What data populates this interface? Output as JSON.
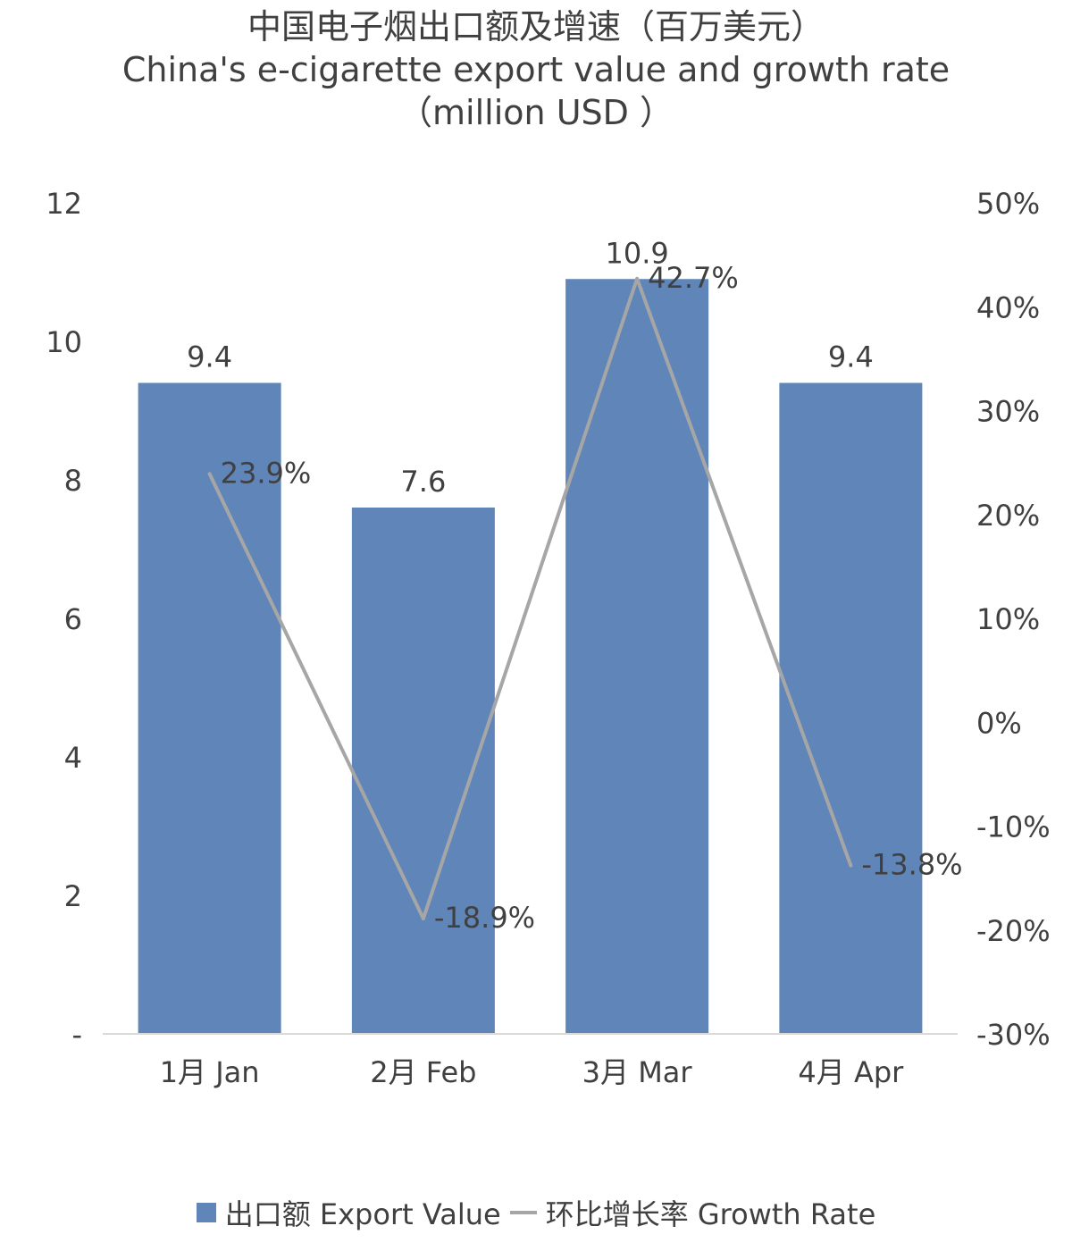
{
  "title_line1": "中国电子烟出口额及增速（百万美元）",
  "title_line2": "China's e-cigarette export value and growth rate",
  "title_line3": "（million USD ）",
  "colors": {
    "bar": "#5f85b9",
    "line": "#a6a6a6",
    "text": "#404040",
    "axis": "#d9d9d9"
  },
  "chart_data": {
    "type": "bar+line",
    "categories": [
      "1月 Jan",
      "2月 Feb",
      "3月 Mar",
      "4月 Apr"
    ],
    "series": [
      {
        "name": "出口额 Export Value",
        "type": "bar",
        "axis": "left",
        "values": [
          9.4,
          7.6,
          10.9,
          9.4
        ],
        "labels": [
          "9.4",
          "7.6",
          "10.9",
          "9.4"
        ]
      },
      {
        "name": "环比增长率 Growth Rate",
        "type": "line",
        "axis": "right",
        "values": [
          23.9,
          -18.9,
          42.7,
          -13.8
        ],
        "labels": [
          "23.9%",
          "-18.9%",
          "42.7%",
          "-13.8%"
        ]
      }
    ],
    "y_left": {
      "ylim": [
        0,
        12
      ],
      "ticks": [
        0,
        2,
        4,
        6,
        8,
        10,
        12
      ],
      "tick_labels": [
        "-",
        "2",
        "4",
        "6",
        "8",
        "10",
        "12"
      ]
    },
    "y_right": {
      "ylim": [
        -30,
        50
      ],
      "ticks": [
        -30,
        -20,
        -10,
        0,
        10,
        20,
        30,
        40,
        50
      ],
      "tick_labels": [
        "-30%",
        "-20%",
        "-10%",
        "0%",
        "10%",
        "20%",
        "30%",
        "40%",
        "50%"
      ]
    },
    "grid": false,
    "legend_position": "bottom"
  }
}
